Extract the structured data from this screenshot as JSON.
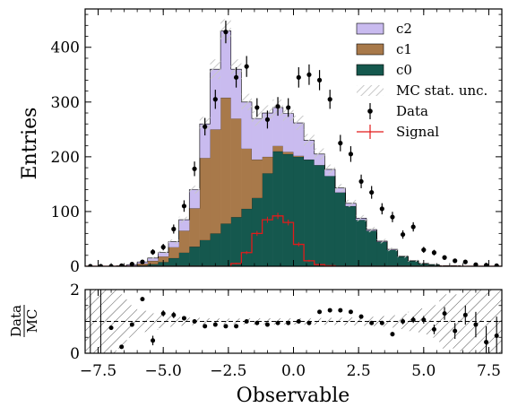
{
  "chart_data": [
    {
      "type": "histogram-stacked",
      "panel": "main",
      "x_edges": [
        -8.0,
        -7.6,
        -7.2,
        -6.8,
        -6.4,
        -6.0,
        -5.6,
        -5.2,
        -4.8,
        -4.4,
        -4.0,
        -3.6,
        -3.2,
        -2.8,
        -2.4,
        -2.0,
        -1.6,
        -1.2,
        -0.8,
        -0.4,
        0.0,
        0.4,
        0.8,
        1.2,
        1.6,
        2.0,
        2.4,
        2.8,
        3.2,
        3.6,
        4.0,
        4.4,
        4.8,
        5.2,
        5.6,
        6.0,
        6.4,
        6.8,
        7.2,
        7.6,
        8.0
      ],
      "series": [
        {
          "name": "c0",
          "color": "#15584e",
          "values": [
            0,
            0,
            0,
            0,
            0,
            2,
            4,
            8,
            15,
            25,
            36,
            48,
            60,
            78,
            90,
            105,
            125,
            170,
            210,
            205,
            200,
            195,
            185,
            165,
            135,
            110,
            85,
            65,
            45,
            30,
            18,
            10,
            5,
            3,
            1,
            1,
            0,
            0,
            0,
            0
          ]
        },
        {
          "name": "c1",
          "color": "#a8794a",
          "values": [
            0,
            0,
            0,
            0,
            1,
            3,
            6,
            10,
            20,
            40,
            70,
            150,
            190,
            230,
            180,
            110,
            70,
            30,
            10,
            4,
            2,
            0,
            0,
            0,
            0,
            0,
            0,
            0,
            0,
            0,
            0,
            0,
            0,
            0,
            0,
            0,
            0,
            0,
            0,
            0
          ]
        },
        {
          "name": "c2",
          "color": "#c9bbef",
          "values": [
            0,
            0,
            0,
            1,
            2,
            3,
            5,
            7,
            10,
            20,
            34,
            62,
            110,
            122,
            90,
            85,
            75,
            80,
            70,
            70,
            60,
            35,
            20,
            12,
            8,
            5,
            3,
            2,
            1,
            1,
            0,
            0,
            0,
            0,
            0,
            0,
            0,
            0,
            0,
            0
          ]
        }
      ],
      "mc_unc_fraction": 0.05,
      "mc_unc_label": "MC stat. unc.",
      "signal": {
        "name": "Signal",
        "color": "#e21b1b",
        "values": [
          0,
          0,
          0,
          0,
          0,
          0,
          0,
          0,
          0,
          0,
          0,
          0,
          0,
          0,
          5,
          25,
          60,
          85,
          92,
          80,
          40,
          10,
          3,
          1,
          0,
          0,
          0,
          0,
          0,
          0,
          0,
          0,
          0,
          0,
          0,
          0,
          0,
          0,
          0,
          0
        ]
      },
      "data": {
        "name": "Data",
        "x": [
          -7.8,
          -7.4,
          -7.0,
          -6.6,
          -6.2,
          -5.8,
          -5.4,
          -5.0,
          -4.6,
          -4.2,
          -3.8,
          -3.4,
          -3.0,
          -2.6,
          -2.2,
          -1.8,
          -1.4,
          -1.0,
          -0.6,
          -0.2,
          0.2,
          0.6,
          1.0,
          1.4,
          1.8,
          2.2,
          2.6,
          3.0,
          3.4,
          3.8,
          4.2,
          4.6,
          5.0,
          5.4,
          5.8,
          6.2,
          6.6,
          7.0,
          7.4,
          7.8
        ],
        "y": [
          0,
          0,
          0,
          1,
          4,
          8,
          26,
          35,
          68,
          110,
          178,
          255,
          305,
          428,
          345,
          365,
          290,
          268,
          292,
          290,
          345,
          350,
          340,
          305,
          225,
          205,
          155,
          135,
          105,
          90,
          58,
          72,
          30,
          25,
          16,
          10,
          8,
          3,
          2,
          1
        ]
      },
      "xlim": [
        -8,
        8
      ],
      "ylim": [
        0,
        470
      ],
      "yticks": [
        0,
        100,
        200,
        300,
        400
      ],
      "ylabel": "Entries",
      "legend_position": "top-right"
    },
    {
      "type": "ratio",
      "panel": "ratio",
      "x": [
        -7.8,
        -7.4,
        -7.0,
        -6.6,
        -6.2,
        -5.8,
        -5.4,
        -5.0,
        -4.6,
        -4.2,
        -3.8,
        -3.4,
        -3.0,
        -2.6,
        -2.2,
        -1.8,
        -1.4,
        -1.0,
        -0.6,
        -0.2,
        0.2,
        0.6,
        1.0,
        1.4,
        1.8,
        2.2,
        2.6,
        3.0,
        3.4,
        3.8,
        4.2,
        4.6,
        5.0,
        5.4,
        5.8,
        6.2,
        6.6,
        7.0,
        7.4,
        7.8
      ],
      "y": [
        null,
        null,
        0.8,
        0.2,
        0.9,
        1.7,
        0.4,
        1.25,
        1.2,
        1.1,
        1.0,
        0.85,
        0.9,
        0.85,
        0.85,
        1.0,
        0.95,
        0.9,
        0.95,
        0.95,
        1.0,
        0.95,
        1.3,
        1.35,
        1.35,
        1.3,
        1.15,
        0.95,
        0.95,
        0.6,
        1.0,
        1.05,
        1.05,
        0.75,
        1.25,
        0.7,
        1.2,
        0.9,
        0.35,
        0.55
      ],
      "yerr": [
        0,
        0,
        0,
        0,
        0,
        0,
        0.15,
        0.1,
        0.1,
        0.07,
        0.05,
        0.05,
        0.05,
        0.04,
        0.04,
        0.04,
        0.04,
        0.04,
        0.04,
        0.04,
        0.04,
        0.04,
        0.04,
        0.04,
        0.04,
        0.05,
        0.05,
        0.06,
        0.06,
        0.07,
        0.09,
        0.1,
        0.12,
        0.15,
        0.2,
        0.25,
        0.3,
        0.4,
        0.5,
        0.6
      ],
      "xlim": [
        -8,
        8
      ],
      "ylim": [
        0,
        2
      ],
      "yticks": [
        0,
        2
      ],
      "reference_line": 1.0,
      "ylabel_num": "Data",
      "ylabel_den": "MC",
      "xlabel": "Observable",
      "xticks": [
        -7.5,
        -5.0,
        -2.5,
        0.0,
        2.5,
        5.0,
        7.5
      ],
      "xtick_labels": [
        "−7.5",
        "−5.0",
        "−2.5",
        "0.0",
        "2.5",
        "5.0",
        "7.5"
      ]
    }
  ]
}
